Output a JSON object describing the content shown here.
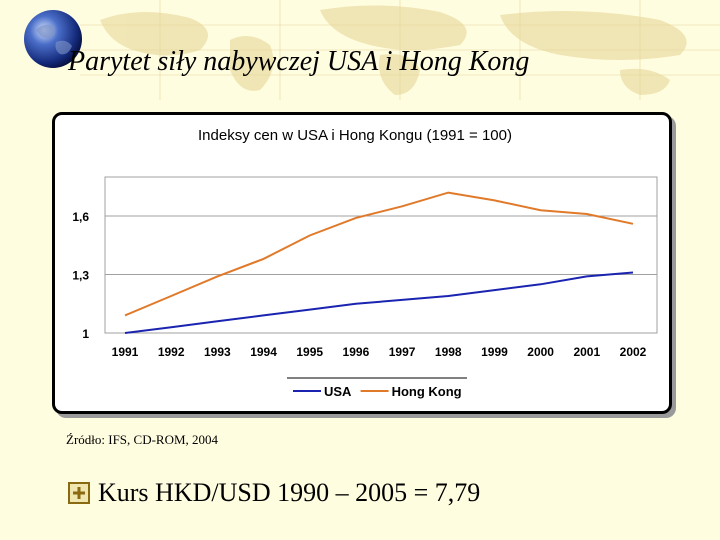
{
  "slide": {
    "title": "Parytet siły nabywczej USA i Hong Kong",
    "source": "Źródło: IFS, CD-ROM, 2004",
    "bullet": "Kurs HKD/USD 1990 – 2005 = 7,79"
  },
  "colors": {
    "usa": "#1a24b0",
    "hong_kong": "#e07a2a",
    "background": "#fffde0"
  },
  "chart_data": {
    "type": "line",
    "title": "Indeksy cen w USA  i Hong Kongu (1991 = 100)",
    "categories": [
      "1991",
      "1992",
      "1993",
      "1994",
      "1995",
      "1996",
      "1997",
      "1998",
      "1999",
      "2000",
      "2001",
      "2002"
    ],
    "y_ticks": [
      {
        "value": 1,
        "label": "1"
      },
      {
        "value": 1.3,
        "label": "1,3"
      },
      {
        "value": 1.6,
        "label": "1,6"
      }
    ],
    "ylim": [
      1,
      1.8
    ],
    "grid": true,
    "legend_position": "bottom",
    "series": [
      {
        "name": "USA",
        "color": "#1a24b0",
        "values": [
          1.0,
          1.03,
          1.06,
          1.09,
          1.12,
          1.15,
          1.17,
          1.19,
          1.22,
          1.25,
          1.29,
          1.31
        ]
      },
      {
        "name": "Hong Kong",
        "color": "#e07a2a",
        "values": [
          1.09,
          1.19,
          1.29,
          1.38,
          1.5,
          1.59,
          1.65,
          1.72,
          1.68,
          1.63,
          1.61,
          1.56
        ]
      }
    ]
  }
}
